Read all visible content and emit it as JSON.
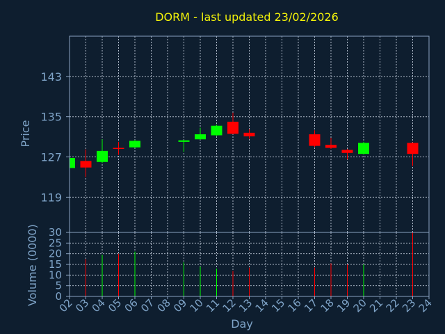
{
  "title": "DORM - last updated 23/02/2026",
  "colors": {
    "up": "#00ff00",
    "down": "#ff0000",
    "background": "#0e1e2f",
    "text": "#7fa4c8",
    "title": "#f2f20a"
  },
  "chart_data": {
    "type": "candlestick",
    "xlabel": "Day",
    "ylabel": "Price",
    "vlabel": "Volume (0000)",
    "x_ticks": [
      "02",
      "03",
      "04",
      "05",
      "06",
      "07",
      "08",
      "09",
      "10",
      "11",
      "12",
      "13",
      "14",
      "15",
      "16",
      "17",
      "18",
      "19",
      "20",
      "21",
      "22",
      "23",
      "24"
    ],
    "y_ticks": [
      119,
      127,
      135,
      143
    ],
    "ylim": [
      112,
      151
    ],
    "volume_ticks": [
      0,
      5,
      10,
      15,
      20,
      25,
      30
    ],
    "volume_ylim": [
      0,
      30
    ],
    "grid": true,
    "candles": [
      {
        "day": "02",
        "open": 124.8,
        "close": 126.8,
        "high": 127.3,
        "low": 124.5,
        "volume": 0.0
      },
      {
        "day": "03",
        "open": 126.2,
        "close": 124.9,
        "high": 128.5,
        "low": 123.0,
        "volume": 17.5
      },
      {
        "day": "04",
        "open": 126.0,
        "close": 128.2,
        "high": 130.5,
        "low": 125.8,
        "volume": 19.5
      },
      {
        "day": "05",
        "open": 128.8,
        "close": 128.6,
        "high": 130.0,
        "low": 127.4,
        "volume": 20.0
      },
      {
        "day": "06",
        "open": 128.9,
        "close": 130.2,
        "high": 130.4,
        "low": 128.8,
        "volume": 21.0
      },
      {
        "day": "09",
        "open": 130.0,
        "close": 130.3,
        "high": 130.4,
        "low": 128.0,
        "volume": 16.0
      },
      {
        "day": "10",
        "open": 130.5,
        "close": 131.5,
        "high": 132.8,
        "low": 130.4,
        "volume": 14.0
      },
      {
        "day": "11",
        "open": 131.3,
        "close": 133.2,
        "high": 133.4,
        "low": 131.2,
        "volume": 13.0
      },
      {
        "day": "12",
        "open": 134.0,
        "close": 131.6,
        "high": 135.8,
        "low": 131.5,
        "volume": 12.0
      },
      {
        "day": "13",
        "open": 131.8,
        "close": 131.1,
        "high": 132.5,
        "low": 130.6,
        "volume": 13.5
      },
      {
        "day": "17",
        "open": 131.5,
        "close": 129.2,
        "high": 132.3,
        "low": 129.0,
        "volume": 13.5
      },
      {
        "day": "18",
        "open": 129.4,
        "close": 128.8,
        "high": 130.8,
        "low": 128.6,
        "volume": 15.5
      },
      {
        "day": "19",
        "open": 128.4,
        "close": 127.8,
        "high": 128.6,
        "low": 126.5,
        "volume": 15.0
      },
      {
        "day": "20",
        "open": 127.6,
        "close": 129.8,
        "high": 130.0,
        "low": 127.5,
        "volume": 15.0
      },
      {
        "day": "23",
        "open": 129.8,
        "close": 127.6,
        "high": 129.9,
        "low": 125.2,
        "volume": 30.0
      }
    ]
  }
}
